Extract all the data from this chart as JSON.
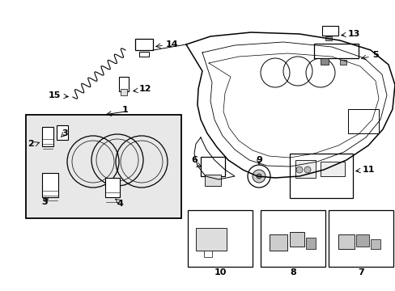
{
  "bg_color": "#ffffff",
  "fig_width": 4.89,
  "fig_height": 3.6,
  "dpi": 100,
  "label_fontsize": 8.0
}
